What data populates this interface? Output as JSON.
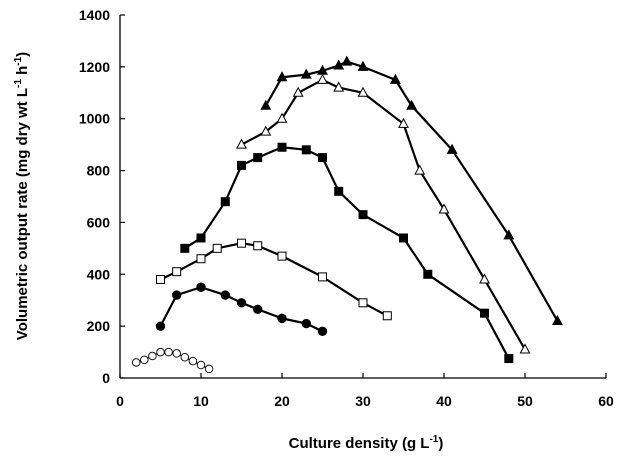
{
  "chart_data": {
    "type": "line",
    "title": "",
    "xlabel": {
      "base": "Culture density (g L",
      "sup": "-1",
      "tail": ")"
    },
    "ylabel": {
      "parts": [
        {
          "t": "Volumetric output rate (mg dry wt L"
        },
        {
          "t": "-1",
          "sup": true
        },
        {
          "t": " h"
        },
        {
          "t": "-1",
          "sup": true
        },
        {
          "t": ")"
        }
      ]
    },
    "xlim": [
      0,
      60
    ],
    "ylim": [
      0,
      1400
    ],
    "xticks": [
      0,
      10,
      20,
      30,
      40,
      50,
      60
    ],
    "yticks": [
      0,
      200,
      400,
      600,
      800,
      1000,
      1200,
      1400
    ],
    "grid": false,
    "legend": "none",
    "series": [
      {
        "marker": "triangle-filled",
        "points": [
          [
            18,
            1050
          ],
          [
            20,
            1160
          ],
          [
            23,
            1170
          ],
          [
            25,
            1185
          ],
          [
            27,
            1205
          ],
          [
            28,
            1220
          ],
          [
            30,
            1200
          ],
          [
            34,
            1150
          ],
          [
            36,
            1050
          ],
          [
            41,
            880
          ],
          [
            48,
            550
          ],
          [
            54,
            220
          ]
        ]
      },
      {
        "marker": "triangle-open",
        "points": [
          [
            15,
            900
          ],
          [
            18,
            950
          ],
          [
            20,
            1000
          ],
          [
            22,
            1100
          ],
          [
            25,
            1150
          ],
          [
            27,
            1120
          ],
          [
            30,
            1100
          ],
          [
            35,
            980
          ],
          [
            37,
            800
          ],
          [
            40,
            650
          ],
          [
            45,
            380
          ],
          [
            50,
            110
          ]
        ]
      },
      {
        "marker": "square-filled",
        "points": [
          [
            8,
            500
          ],
          [
            10,
            540
          ],
          [
            13,
            680
          ],
          [
            15,
            820
          ],
          [
            17,
            850
          ],
          [
            20,
            890
          ],
          [
            23,
            880
          ],
          [
            25,
            850
          ],
          [
            27,
            720
          ],
          [
            30,
            630
          ],
          [
            35,
            540
          ],
          [
            38,
            400
          ],
          [
            45,
            250
          ],
          [
            48,
            75
          ]
        ]
      },
      {
        "marker": "square-open",
        "points": [
          [
            5,
            380
          ],
          [
            7,
            410
          ],
          [
            10,
            460
          ],
          [
            12,
            500
          ],
          [
            15,
            520
          ],
          [
            17,
            510
          ],
          [
            20,
            470
          ],
          [
            25,
            390
          ],
          [
            30,
            290
          ],
          [
            33,
            240
          ]
        ]
      },
      {
        "marker": "circle-filled",
        "points": [
          [
            5,
            200
          ],
          [
            7,
            320
          ],
          [
            10,
            350
          ],
          [
            13,
            320
          ],
          [
            15,
            290
          ],
          [
            17,
            265
          ],
          [
            20,
            230
          ],
          [
            23,
            210
          ],
          [
            25,
            180
          ]
        ]
      },
      {
        "marker": "circle-open",
        "points": [
          [
            2,
            60
          ],
          [
            3,
            70
          ],
          [
            4,
            85
          ],
          [
            5,
            100
          ],
          [
            6,
            100
          ],
          [
            7,
            95
          ],
          [
            8,
            80
          ],
          [
            9,
            65
          ],
          [
            10,
            50
          ],
          [
            11,
            35
          ]
        ]
      }
    ]
  }
}
